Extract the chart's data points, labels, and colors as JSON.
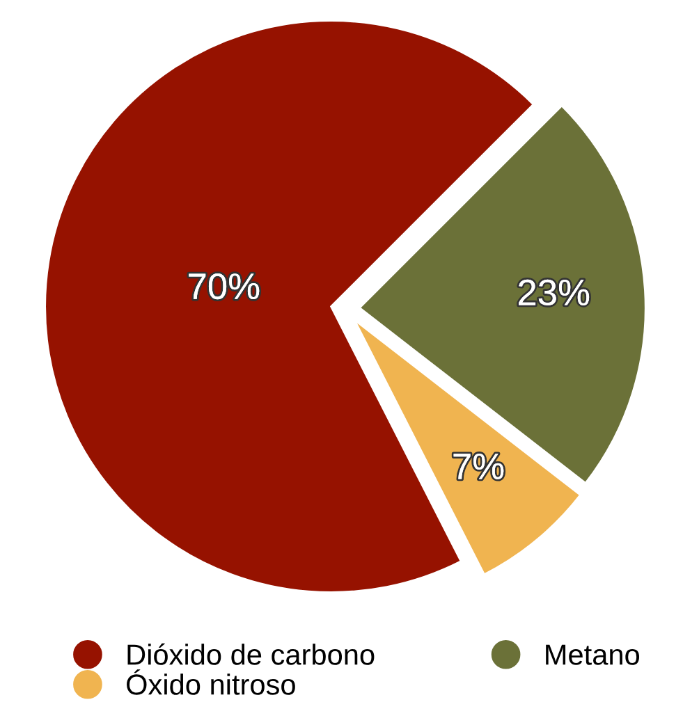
{
  "chart_data": {
    "type": "pie",
    "categories": [
      "Dióxido de carbono",
      "Metano",
      "Óxido nitroso"
    ],
    "values": [
      70,
      23,
      7
    ],
    "colors": [
      "#961200",
      "#6b7138",
      "#f0b450"
    ],
    "value_labels": [
      "70%",
      "23%",
      "7%"
    ],
    "legend": "bottom"
  }
}
